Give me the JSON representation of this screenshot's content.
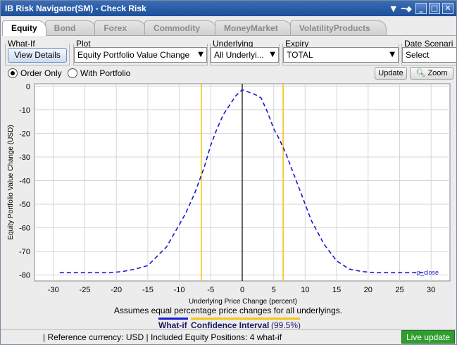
{
  "window": {
    "title": "IB Risk Navigator(SM) - Check Risk"
  },
  "tabs": [
    {
      "label": "Equity",
      "active": true
    },
    {
      "label": "Bond",
      "active": false
    },
    {
      "label": "Forex",
      "active": false
    },
    {
      "label": "Commodity",
      "active": false
    },
    {
      "label": "MoneyMarket",
      "active": false
    },
    {
      "label": "VolatilityProducts",
      "active": false
    }
  ],
  "controls": {
    "whatif": {
      "label": "What-If",
      "button": "View Details"
    },
    "plot": {
      "label": "Plot",
      "value": "Equity Portfolio Value Change"
    },
    "underlying": {
      "label": "Underlying",
      "value": "All Underlyi..."
    },
    "expiry": {
      "label": "Expiry",
      "value": "TOTAL"
    },
    "date_scenario": {
      "label": "Date Scenari",
      "value": "Select"
    }
  },
  "options": {
    "order_only": {
      "label": "Order Only",
      "checked": true
    },
    "with_portfolio": {
      "label": "With Portfolio",
      "checked": false
    }
  },
  "buttons": {
    "update": "Update",
    "zoom": "Zoom"
  },
  "chart_data": {
    "type": "line",
    "xlabel": "Underlying Price Change (percent)",
    "ylabel": "Equity Portfolio Value Change (USD)",
    "xlim": [
      -33,
      33
    ],
    "ylim": [
      -82.5,
      1
    ],
    "x_ticks": [
      -30,
      -25,
      -20,
      -15,
      -10,
      -5,
      0,
      5,
      10,
      15,
      20,
      25,
      30
    ],
    "y_ticks": [
      0,
      -10,
      -20,
      -30,
      -40,
      -50,
      -60,
      -70,
      -80
    ],
    "series": [
      {
        "name": "What-if",
        "color": "#1a1acc",
        "style": "dashed",
        "x": [
          -29,
          -27,
          -25,
          -23,
          -21,
          -19,
          -17,
          -15,
          -13.5,
          -12,
          -10.5,
          -9,
          -7.5,
          -6,
          -5,
          -4,
          -3,
          -2,
          -1,
          0,
          1,
          2,
          3,
          4,
          5,
          6,
          7,
          8,
          9,
          10,
          11,
          13,
          15,
          17,
          19,
          21,
          23,
          25,
          27,
          29
        ],
        "y": [
          -79,
          -79,
          -79,
          -79,
          -79,
          -78.5,
          -77.5,
          -76,
          -72,
          -68,
          -61,
          -54,
          -45,
          -34,
          -25,
          -18,
          -12,
          -8,
          -4,
          -1.5,
          -2.5,
          -3.5,
          -5,
          -11,
          -18,
          -23,
          -29,
          -36,
          -43,
          -50,
          -57,
          -67,
          -74,
          -77.5,
          -78.5,
          -79,
          -79,
          -79,
          -79,
          -79
        ]
      }
    ],
    "confidence_interval": {
      "label": "Confidence Interval",
      "value": "(99.5%)",
      "lower": -6.5,
      "upper": 6.5,
      "color": "#f5c518"
    },
    "baseline_label": "p_close",
    "note": "Assumes equal percentage price changes for all underlyings."
  },
  "status": {
    "text": "| Reference currency: USD  |  Included Equity Positions: 4 what-if",
    "live": "Live update"
  }
}
